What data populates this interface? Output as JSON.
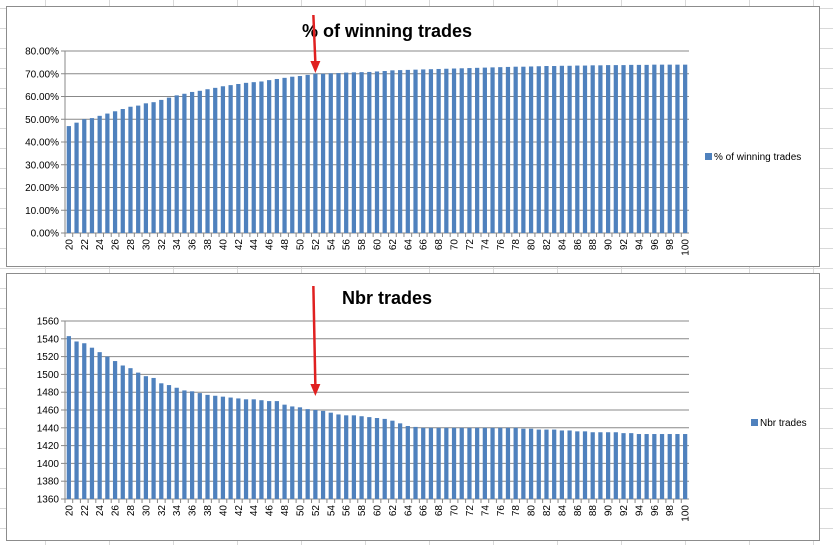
{
  "chart_data": [
    {
      "type": "bar",
      "title": "% of winning trades",
      "xlabel": "",
      "ylabel": "",
      "ylim": [
        0,
        0.8
      ],
      "yticks": [
        "0.00%",
        "10.00%",
        "20.00%",
        "30.00%",
        "40.00%",
        "50.00%",
        "60.00%",
        "70.00%",
        "80.00%"
      ],
      "legend_position": "right",
      "grid": true,
      "bar_color": "#4f81bd",
      "annotation_color": "#e02020",
      "annotation_category": "52",
      "categories": [
        "20",
        "21",
        "22",
        "23",
        "24",
        "25",
        "26",
        "27",
        "28",
        "29",
        "30",
        "31",
        "32",
        "33",
        "34",
        "35",
        "36",
        "37",
        "38",
        "39",
        "40",
        "41",
        "42",
        "43",
        "44",
        "45",
        "46",
        "47",
        "48",
        "49",
        "50",
        "51",
        "52",
        "53",
        "54",
        "55",
        "56",
        "57",
        "58",
        "59",
        "60",
        "61",
        "62",
        "63",
        "64",
        "65",
        "66",
        "67",
        "68",
        "69",
        "70",
        "71",
        "72",
        "73",
        "74",
        "75",
        "76",
        "77",
        "78",
        "79",
        "80",
        "81",
        "82",
        "83",
        "84",
        "85",
        "86",
        "87",
        "88",
        "89",
        "90",
        "91",
        "92",
        "93",
        "94",
        "95",
        "96",
        "97",
        "98",
        "99",
        "100"
      ],
      "series": [
        {
          "name": "% of winning trades",
          "values": [
            0.47,
            0.485,
            0.5,
            0.505,
            0.515,
            0.525,
            0.535,
            0.545,
            0.555,
            0.56,
            0.57,
            0.575,
            0.585,
            0.595,
            0.605,
            0.612,
            0.62,
            0.625,
            0.632,
            0.638,
            0.645,
            0.65,
            0.655,
            0.66,
            0.663,
            0.666,
            0.672,
            0.677,
            0.682,
            0.687,
            0.69,
            0.695,
            0.7,
            0.7,
            0.702,
            0.703,
            0.705,
            0.706,
            0.707,
            0.708,
            0.71,
            0.712,
            0.715,
            0.716,
            0.717,
            0.718,
            0.719,
            0.72,
            0.721,
            0.722,
            0.723,
            0.724,
            0.725,
            0.726,
            0.727,
            0.728,
            0.729,
            0.73,
            0.731,
            0.731,
            0.732,
            0.733,
            0.734,
            0.734,
            0.735,
            0.735,
            0.736,
            0.736,
            0.737,
            0.737,
            0.738,
            0.738,
            0.738,
            0.739,
            0.739,
            0.739,
            0.74,
            0.74,
            0.74,
            0.74,
            0.74
          ]
        }
      ]
    },
    {
      "type": "bar",
      "title": "Nbr trades",
      "xlabel": "",
      "ylabel": "",
      "ylim": [
        1360,
        1560
      ],
      "yticks": [
        "1360",
        "1380",
        "1400",
        "1420",
        "1440",
        "1460",
        "1480",
        "1500",
        "1520",
        "1540",
        "1560"
      ],
      "legend_position": "right",
      "grid": true,
      "bar_color": "#4f81bd",
      "annotation_color": "#e02020",
      "annotation_category": "52",
      "categories": [
        "20",
        "21",
        "22",
        "23",
        "24",
        "25",
        "26",
        "27",
        "28",
        "29",
        "30",
        "31",
        "32",
        "33",
        "34",
        "35",
        "36",
        "37",
        "38",
        "39",
        "40",
        "41",
        "42",
        "43",
        "44",
        "45",
        "46",
        "47",
        "48",
        "49",
        "50",
        "51",
        "52",
        "53",
        "54",
        "55",
        "56",
        "57",
        "58",
        "59",
        "60",
        "61",
        "62",
        "63",
        "64",
        "65",
        "66",
        "67",
        "68",
        "69",
        "70",
        "71",
        "72",
        "73",
        "74",
        "75",
        "76",
        "77",
        "78",
        "79",
        "80",
        "81",
        "82",
        "83",
        "84",
        "85",
        "86",
        "87",
        "88",
        "89",
        "90",
        "91",
        "92",
        "93",
        "94",
        "95",
        "96",
        "97",
        "98",
        "99",
        "100"
      ],
      "series": [
        {
          "name": "Nbr trades",
          "values": [
            1543,
            1537,
            1535,
            1530,
            1525,
            1520,
            1515,
            1510,
            1507,
            1502,
            1498,
            1496,
            1490,
            1488,
            1485,
            1482,
            1481,
            1479,
            1477,
            1476,
            1475,
            1474,
            1473,
            1472,
            1472,
            1471,
            1470,
            1470,
            1466,
            1464,
            1463,
            1461,
            1460,
            1459,
            1457,
            1455,
            1454,
            1454,
            1453,
            1452,
            1451,
            1450,
            1448,
            1445,
            1442,
            1441,
            1440,
            1440,
            1440,
            1440,
            1440,
            1440,
            1440,
            1440,
            1440,
            1440,
            1440,
            1440,
            1440,
            1439,
            1439,
            1438,
            1438,
            1438,
            1437,
            1437,
            1436,
            1436,
            1435,
            1435,
            1435,
            1435,
            1434,
            1434,
            1433,
            1433,
            1433,
            1433,
            1433,
            1433,
            1433
          ]
        }
      ]
    }
  ]
}
